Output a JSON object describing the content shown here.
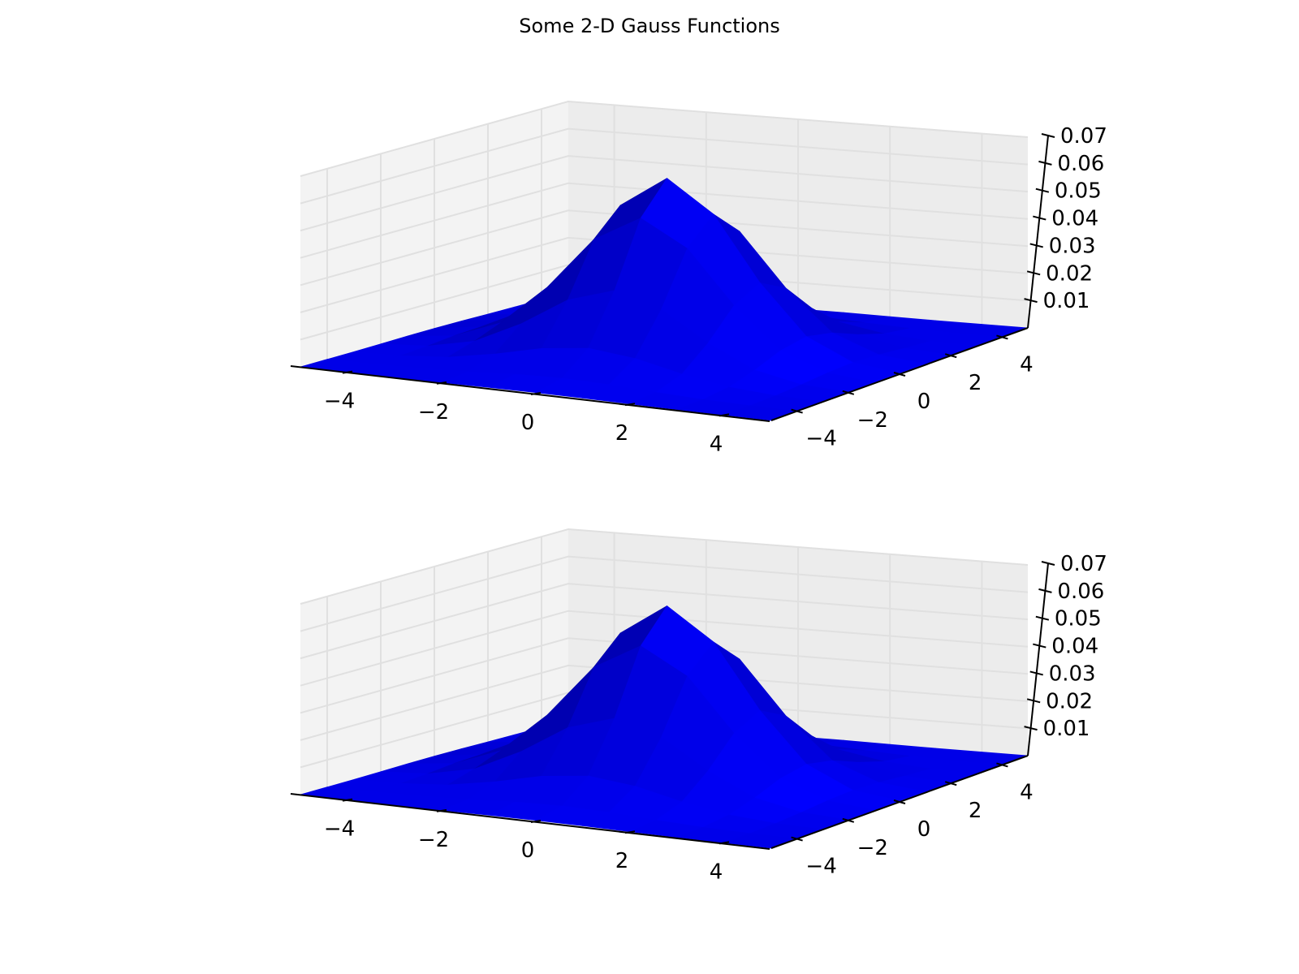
{
  "title": "Some 2-D Gauss Functions",
  "colors": {
    "surface": "#0000ff",
    "pane": "#ececec",
    "grid": "#e0e0e0",
    "axis": "#000000"
  },
  "chart_data": [
    {
      "type": "surface3d",
      "title": "",
      "function": "2-D Gaussian",
      "x": [
        -5,
        -4,
        -3,
        -2,
        -1,
        0,
        1,
        2,
        3,
        4,
        5
      ],
      "y": [
        -5,
        -4,
        -3,
        -2,
        -1,
        0,
        1,
        2,
        3,
        4,
        5
      ],
      "peak": {
        "x": 0,
        "y": 0,
        "z": 0.0637
      },
      "sigma": 1.58,
      "xlim": [
        -5,
        5
      ],
      "ylim": [
        -5,
        5
      ],
      "zlim": [
        0,
        0.07
      ],
      "xticks": [
        -4,
        -2,
        0,
        2,
        4
      ],
      "xtick_labels": [
        "−4",
        "−2",
        "0",
        "2",
        "4"
      ],
      "yticks": [
        -4,
        -2,
        0,
        2,
        4
      ],
      "ytick_labels": [
        "−4",
        "−2",
        "0",
        "2",
        "4"
      ],
      "zticks": [
        0.01,
        0.02,
        0.03,
        0.04,
        0.05,
        0.06,
        0.07
      ],
      "ztick_labels": [
        "0.01",
        "0.02",
        "0.03",
        "0.04",
        "0.05",
        "0.06",
        "0.07"
      ],
      "grid": true
    },
    {
      "type": "surface3d",
      "title": "",
      "function": "2-D Gaussian",
      "x": [
        -5,
        -4,
        -3,
        -2,
        -1,
        0,
        1,
        2,
        3,
        4,
        5
      ],
      "y": [
        -5,
        -4,
        -3,
        -2,
        -1,
        0,
        1,
        2,
        3,
        4,
        5
      ],
      "peak": {
        "x": 0,
        "y": 0,
        "z": 0.0637
      },
      "sigma": 1.58,
      "xlim": [
        -5,
        5
      ],
      "ylim": [
        -5,
        5
      ],
      "zlim": [
        0,
        0.07
      ],
      "xticks": [
        -4,
        -2,
        0,
        2,
        4
      ],
      "xtick_labels": [
        "−4",
        "−2",
        "0",
        "2",
        "4"
      ],
      "yticks": [
        -4,
        -2,
        0,
        2,
        4
      ],
      "ytick_labels": [
        "−4",
        "−2",
        "0",
        "2",
        "4"
      ],
      "zticks": [
        0.01,
        0.02,
        0.03,
        0.04,
        0.05,
        0.06,
        0.07
      ],
      "ztick_labels": [
        "0.01",
        "0.02",
        "0.03",
        "0.04",
        "0.05",
        "0.06",
        "0.07"
      ],
      "grid": true
    }
  ]
}
